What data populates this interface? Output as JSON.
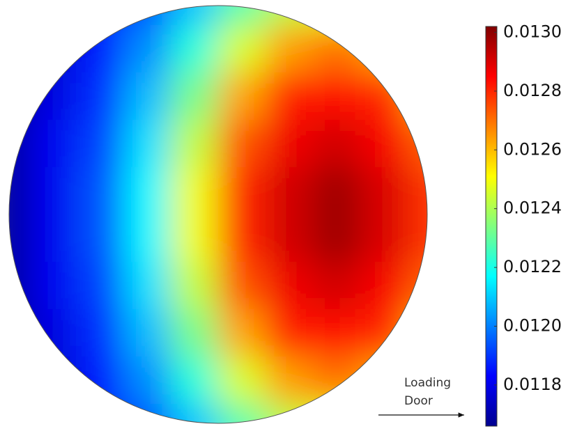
{
  "chart_data": {
    "type": "heatmap",
    "shape": "circle",
    "colormap": "jet",
    "clim": [
      0.01166,
      0.01302
    ],
    "cticks": [
      {
        "value": 0.013,
        "label": "0.0130"
      },
      0.0128,
      0.0126,
      0.0124,
      0.0122,
      {
        "value": 0.012,
        "label": "0.0120"
      },
      0.0118
    ],
    "annotation": [
      "Loading",
      "Door"
    ],
    "z": [
      [
        0.01168,
        0.01174,
        0.01183,
        0.01194,
        0.01209,
        0.01228,
        0.01242,
        0.01248,
        0.0124,
        0.01226
      ],
      [
        0.01169,
        0.01177,
        0.01187,
        0.01202,
        0.01222,
        0.01246,
        0.01264,
        0.0127,
        0.01263,
        0.01243
      ],
      [
        0.0117,
        0.01179,
        0.01189,
        0.01208,
        0.01233,
        0.01263,
        0.01281,
        0.01284,
        0.0128,
        0.01261
      ],
      [
        0.0117,
        0.01181,
        0.01192,
        0.01213,
        0.01243,
        0.01274,
        0.01287,
        0.01291,
        0.01286,
        0.01272
      ],
      [
        0.0117,
        0.01181,
        0.01194,
        0.01216,
        0.01249,
        0.0128,
        0.01291,
        0.01298,
        0.0129,
        0.01278
      ],
      [
        0.0117,
        0.01181,
        0.01194,
        0.01216,
        0.01249,
        0.0128,
        0.01291,
        0.01298,
        0.0129,
        0.01278
      ],
      [
        0.0117,
        0.01181,
        0.01192,
        0.01213,
        0.01243,
        0.01274,
        0.01287,
        0.01291,
        0.01286,
        0.01272
      ],
      [
        0.0117,
        0.01179,
        0.01189,
        0.01208,
        0.01233,
        0.01263,
        0.01281,
        0.01284,
        0.0128,
        0.01261
      ],
      [
        0.01169,
        0.01177,
        0.01187,
        0.01202,
        0.01222,
        0.01246,
        0.01264,
        0.0127,
        0.01263,
        0.01243
      ],
      [
        0.01168,
        0.01174,
        0.01183,
        0.01194,
        0.01209,
        0.01228,
        0.01242,
        0.01248,
        0.0124,
        0.01226
      ]
    ]
  }
}
